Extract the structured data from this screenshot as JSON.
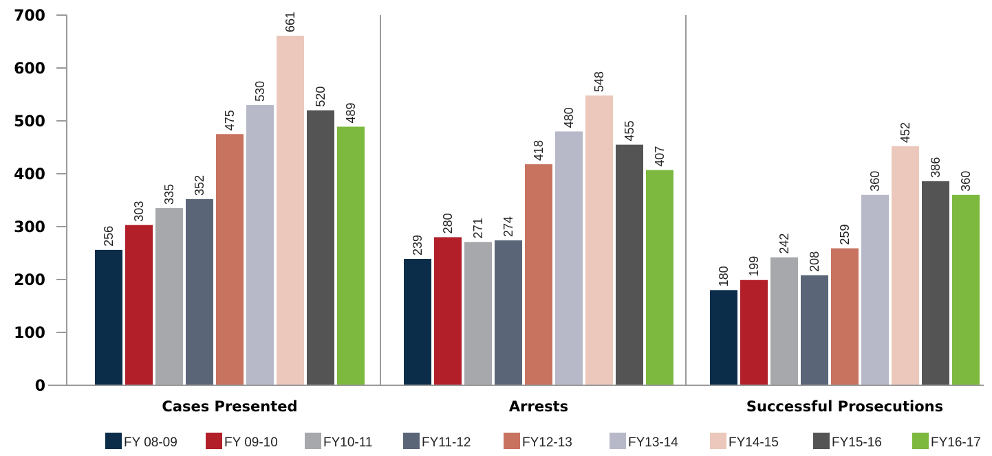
{
  "chart_data": {
    "type": "bar",
    "categories": [
      "Cases Presented",
      "Arrests",
      "Successful Prosecutions"
    ],
    "ylim": [
      0,
      700
    ],
    "yticks": [
      0,
      100,
      200,
      300,
      400,
      500,
      600,
      700
    ],
    "grid": false,
    "legend_position": "bottom",
    "series": [
      {
        "name": "FY 08-09",
        "color": "#0b2d4a",
        "values": [
          256,
          239,
          180
        ]
      },
      {
        "name": "FY 09-10",
        "color": "#b21f29",
        "values": [
          303,
          280,
          199
        ]
      },
      {
        "name": "FY10-11",
        "color": "#a6a8ab",
        "values": [
          335,
          271,
          242
        ]
      },
      {
        "name": "FY11-12",
        "color": "#5b6578",
        "values": [
          352,
          274,
          208
        ]
      },
      {
        "name": "FY12-13",
        "color": "#c87260",
        "values": [
          475,
          418,
          259
        ]
      },
      {
        "name": "FY13-14",
        "color": "#b7b9c9",
        "values": [
          530,
          480,
          360
        ]
      },
      {
        "name": "FY14-15",
        "color": "#ebc8bb",
        "values": [
          661,
          548,
          452
        ]
      },
      {
        "name": "FY15-16",
        "color": "#545454",
        "values": [
          520,
          455,
          386
        ]
      },
      {
        "name": "FY16-17",
        "color": "#7db83f",
        "values": [
          489,
          407,
          360
        ]
      }
    ]
  }
}
